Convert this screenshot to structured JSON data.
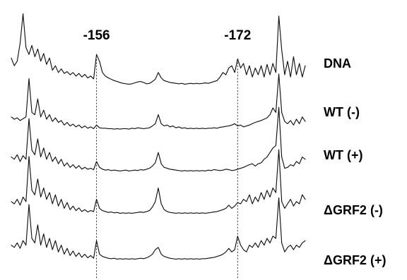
{
  "chart_data": {
    "type": "line",
    "title": "",
    "xlabel": "",
    "ylabel": "",
    "grid": false,
    "legend": "none",
    "x_range": [
      0,
      100
    ],
    "marked_positions": [
      {
        "label": "-156",
        "x": 29
      },
      {
        "label": "-172",
        "x": 77
      }
    ],
    "series": [
      {
        "name": "DNA",
        "values": [
          0.62,
          0.45,
          0.55,
          0.95,
          1.6,
          0.85,
          0.7,
          0.9,
          0.65,
          0.82,
          0.55,
          0.72,
          0.48,
          0.62,
          0.35,
          0.45,
          0.3,
          0.38,
          0.28,
          0.32,
          0.25,
          0.3,
          0.22,
          0.28,
          0.2,
          0.26,
          0.18,
          0.22,
          0.16,
          0.7,
          0.55,
          0.3,
          0.22,
          0.18,
          0.15,
          0.12,
          0.1,
          0.08,
          0.06,
          0.05,
          0.04,
          0.05,
          0.07,
          0.09,
          0.1,
          0.08,
          0.05,
          0.06,
          0.1,
          0.15,
          0.3,
          0.18,
          0.12,
          0.1,
          0.08,
          0.07,
          0.06,
          0.05,
          0.06,
          0.04,
          0.05,
          0.06,
          0.05,
          0.06,
          0.05,
          0.06,
          0.07,
          0.06,
          0.08,
          0.1,
          0.12,
          0.2,
          0.3,
          0.25,
          0.4,
          0.45,
          0.3,
          0.6,
          0.4,
          0.5,
          0.25,
          0.45,
          0.2,
          0.4,
          0.25,
          0.45,
          0.2,
          0.48,
          0.25,
          0.5,
          0.3,
          1.55,
          0.8,
          0.25,
          0.55,
          0.2,
          0.65,
          0.25,
          0.5,
          0.2,
          0.45
        ]
      },
      {
        "name": "WT (-)",
        "values": [
          0.3,
          0.25,
          0.28,
          0.22,
          0.26,
          0.3,
          1.15,
          0.4,
          0.35,
          0.7,
          0.3,
          0.45,
          0.25,
          0.35,
          0.2,
          0.28,
          0.18,
          0.22,
          0.12,
          0.18,
          0.1,
          0.14,
          0.08,
          0.12,
          0.06,
          0.1,
          0.05,
          0.08,
          0.04,
          0.12,
          0.06,
          0.05,
          0.05,
          0.04,
          0.04,
          0.03,
          0.04,
          0.03,
          0.04,
          0.04,
          0.03,
          0.05,
          0.04,
          0.06,
          0.05,
          0.04,
          0.05,
          0.06,
          0.1,
          0.15,
          0.35,
          0.15,
          0.1,
          0.12,
          0.08,
          0.1,
          0.06,
          0.08,
          0.05,
          0.06,
          0.04,
          0.05,
          0.04,
          0.05,
          0.04,
          0.05,
          0.04,
          0.05,
          0.05,
          0.06,
          0.05,
          0.07,
          0.08,
          0.09,
          0.1,
          0.12,
          0.15,
          0.1,
          0.12,
          0.08,
          0.1,
          0.12,
          0.15,
          0.18,
          0.2,
          0.22,
          0.25,
          0.28,
          0.35,
          0.5,
          0.4,
          1.25,
          0.4,
          0.2,
          0.15,
          0.22,
          0.12,
          0.25,
          0.15,
          0.3,
          0.2
        ]
      },
      {
        "name": "WT (+)",
        "values": [
          0.35,
          0.3,
          0.4,
          0.25,
          0.38,
          0.3,
          1.2,
          0.5,
          0.4,
          0.75,
          0.35,
          0.55,
          0.3,
          0.45,
          0.25,
          0.35,
          0.2,
          0.3,
          0.15,
          0.22,
          0.12,
          0.18,
          0.1,
          0.16,
          0.08,
          0.12,
          0.08,
          0.1,
          0.07,
          0.25,
          0.12,
          0.08,
          0.06,
          0.07,
          0.05,
          0.06,
          0.05,
          0.04,
          0.05,
          0.06,
          0.04,
          0.05,
          0.06,
          0.05,
          0.07,
          0.06,
          0.08,
          0.1,
          0.15,
          0.22,
          0.45,
          0.2,
          0.12,
          0.1,
          0.08,
          0.07,
          0.06,
          0.05,
          0.04,
          0.05,
          0.04,
          0.05,
          0.04,
          0.05,
          0.04,
          0.05,
          0.04,
          0.06,
          0.05,
          0.07,
          0.06,
          0.05,
          0.06,
          0.08,
          0.07,
          0.05,
          0.06,
          0.08,
          0.1,
          0.12,
          0.15,
          0.18,
          0.2,
          0.15,
          0.2,
          0.22,
          0.3,
          0.35,
          0.45,
          0.55,
          0.6,
          1.45,
          0.35,
          0.1,
          0.12,
          0.18,
          0.15,
          0.25,
          0.2,
          0.35,
          0.3
        ]
      },
      {
        "name": "ΔGRF2 (-)",
        "values": [
          0.3,
          0.25,
          0.35,
          0.22,
          0.4,
          0.3,
          1.3,
          0.55,
          0.45,
          0.8,
          0.4,
          0.6,
          0.35,
          0.5,
          0.25,
          0.45,
          0.2,
          0.35,
          0.15,
          0.28,
          0.12,
          0.2,
          0.1,
          0.16,
          0.08,
          0.12,
          0.07,
          0.1,
          0.08,
          0.35,
          0.15,
          0.1,
          0.08,
          0.06,
          0.07,
          0.05,
          0.06,
          0.04,
          0.05,
          0.04,
          0.05,
          0.04,
          0.05,
          0.06,
          0.07,
          0.06,
          0.08,
          0.1,
          0.18,
          0.3,
          0.6,
          0.25,
          0.12,
          0.08,
          0.06,
          0.05,
          0.04,
          0.05,
          0.04,
          0.05,
          0.04,
          0.05,
          0.04,
          0.05,
          0.04,
          0.05,
          0.04,
          0.05,
          0.06,
          0.07,
          0.08,
          0.1,
          0.12,
          0.15,
          0.22,
          0.15,
          0.2,
          0.28,
          0.25,
          0.35,
          0.3,
          0.45,
          0.25,
          0.4,
          0.3,
          0.5,
          0.35,
          0.55,
          0.4,
          0.6,
          0.5,
          1.45,
          0.3,
          0.15,
          0.25,
          0.35,
          0.2,
          0.3,
          0.25,
          0.45,
          0.35
        ]
      },
      {
        "name": "ΔGRF2 (+)",
        "values": [
          0.35,
          0.3,
          0.4,
          0.28,
          0.45,
          0.35,
          1.25,
          0.5,
          0.4,
          0.8,
          0.35,
          0.6,
          0.3,
          0.5,
          0.25,
          0.45,
          0.2,
          0.35,
          0.15,
          0.28,
          0.12,
          0.22,
          0.1,
          0.18,
          0.08,
          0.15,
          0.07,
          0.12,
          0.06,
          0.45,
          0.15,
          0.1,
          0.08,
          0.06,
          0.05,
          0.06,
          0.04,
          0.05,
          0.04,
          0.05,
          0.04,
          0.05,
          0.04,
          0.05,
          0.06,
          0.05,
          0.07,
          0.1,
          0.15,
          0.25,
          0.3,
          0.15,
          0.1,
          0.08,
          0.06,
          0.05,
          0.04,
          0.05,
          0.04,
          0.05,
          0.04,
          0.05,
          0.04,
          0.05,
          0.04,
          0.05,
          0.05,
          0.06,
          0.07,
          0.08,
          0.1,
          0.12,
          0.15,
          0.2,
          0.28,
          0.2,
          0.25,
          0.55,
          0.35,
          0.25,
          0.2,
          0.35,
          0.3,
          0.4,
          0.3,
          0.45,
          0.35,
          0.5,
          0.4,
          0.55,
          0.5,
          1.4,
          0.4,
          0.2,
          0.3,
          0.35,
          0.25,
          0.35,
          0.3,
          0.4,
          0.45
        ]
      }
    ]
  }
}
